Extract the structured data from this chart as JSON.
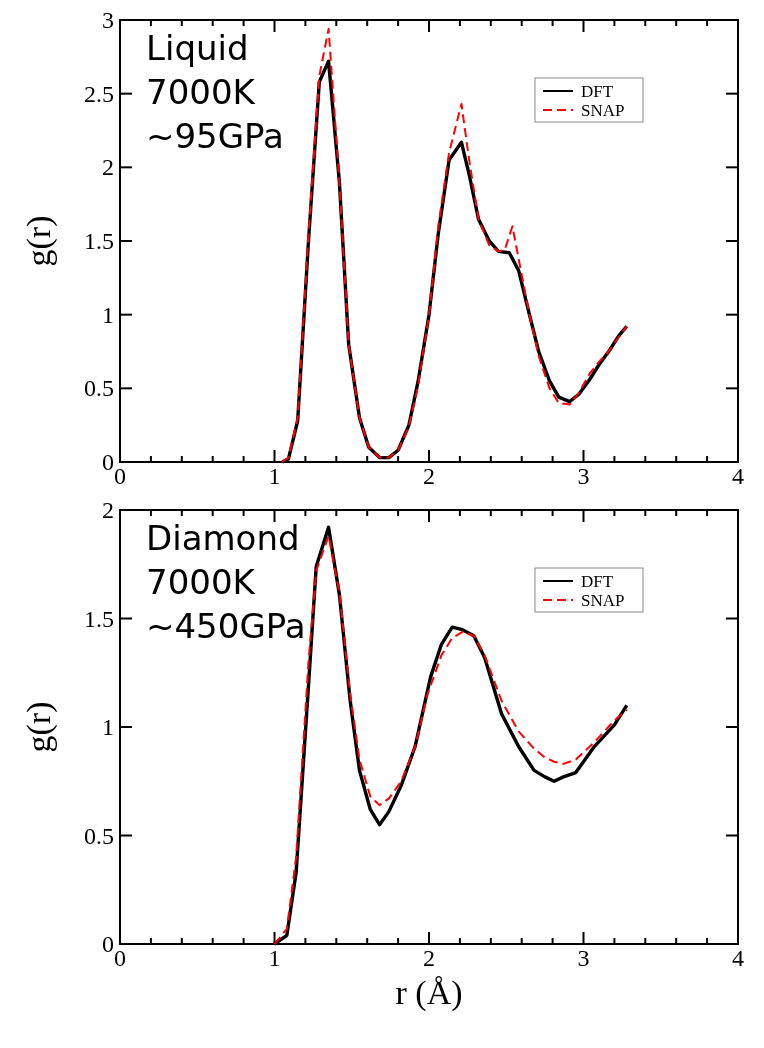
{
  "chart_data": [
    {
      "type": "line",
      "ylabel": "g(r)",
      "annotations": [
        "Liquid\n7000K\n~95GPa"
      ],
      "legend": "top right",
      "xlim": [
        0,
        4
      ],
      "ylim": [
        0,
        3
      ],
      "xticks": [
        0,
        {
          "value": 0.2,
          "label": null
        },
        {
          "value": 0.4,
          "label": null
        },
        {
          "value": 0.6,
          "label": null
        },
        {
          "value": 0.8,
          "label": null
        },
        1,
        {
          "value": 1.2,
          "label": null
        },
        {
          "value": 1.4,
          "label": null
        },
        {
          "value": 1.6,
          "label": null
        },
        {
          "value": 1.8,
          "label": null
        },
        2,
        {
          "value": 2.2,
          "label": null
        },
        {
          "value": 2.4,
          "label": null
        },
        {
          "value": 2.6,
          "label": null
        },
        {
          "value": 2.8,
          "label": null
        },
        3,
        {
          "value": 3.2,
          "label": null
        },
        {
          "value": 3.4,
          "label": null
        },
        {
          "value": 3.6,
          "label": null
        },
        {
          "value": 3.8,
          "label": null
        },
        4
      ],
      "yticks": [
        0,
        0.5,
        1,
        1.5,
        2,
        2.5,
        3
      ],
      "series": [
        {
          "name": "DFT",
          "color": "#000000",
          "line_style": "solid",
          "x": [
            1.05,
            1.09,
            1.15,
            1.22,
            1.29,
            1.35,
            1.42,
            1.48,
            1.55,
            1.61,
            1.68,
            1.74,
            1.8,
            1.87,
            1.93,
            2.0,
            2.06,
            2.13,
            2.21,
            2.26,
            2.32,
            2.39,
            2.45,
            2.52,
            2.58,
            2.65,
            2.71,
            2.78,
            2.84,
            2.91,
            2.97,
            3.04,
            3.1,
            3.17,
            3.23,
            3.28
          ],
          "values": [
            0,
            0.02,
            0.28,
            1.5,
            2.58,
            2.72,
            1.9,
            0.8,
            0.3,
            0.1,
            0.03,
            0.03,
            0.08,
            0.25,
            0.55,
            1.0,
            1.55,
            2.05,
            2.17,
            1.95,
            1.65,
            1.5,
            1.43,
            1.42,
            1.3,
            1.0,
            0.75,
            0.55,
            0.44,
            0.41,
            0.46,
            0.56,
            0.66,
            0.76,
            0.86,
            0.92
          ]
        },
        {
          "name": "SNAP",
          "color": "#ff0000",
          "line_style": "dashed",
          "x": [
            1.05,
            1.09,
            1.15,
            1.22,
            1.29,
            1.35,
            1.42,
            1.48,
            1.55,
            1.61,
            1.68,
            1.74,
            1.8,
            1.87,
            1.93,
            2.0,
            2.06,
            2.13,
            2.21,
            2.26,
            2.32,
            2.39,
            2.45,
            2.49,
            2.54,
            2.58,
            2.65,
            2.71,
            2.78,
            2.84,
            2.91,
            2.97,
            3.04,
            3.1,
            3.17,
            3.23,
            3.28
          ],
          "values": [
            0,
            0.03,
            0.3,
            1.55,
            2.62,
            2.94,
            1.9,
            0.8,
            0.3,
            0.1,
            0.03,
            0.03,
            0.08,
            0.24,
            0.52,
            1.0,
            1.6,
            2.1,
            2.43,
            2.05,
            1.65,
            1.47,
            1.43,
            1.44,
            1.6,
            1.38,
            1.0,
            0.72,
            0.5,
            0.4,
            0.39,
            0.47,
            0.6,
            0.68,
            0.76,
            0.85,
            0.92
          ]
        }
      ]
    },
    {
      "type": "line",
      "xlabel": "r (Å)",
      "ylabel": "g(r)",
      "annotations": [
        "Diamond\n7000K\n~450GPa"
      ],
      "legend": "top right",
      "xlim": [
        0,
        4
      ],
      "ylim": [
        0,
        2
      ],
      "xticks": [
        0,
        {
          "value": 0.2,
          "label": null
        },
        {
          "value": 0.4,
          "label": null
        },
        {
          "value": 0.6,
          "label": null
        },
        {
          "value": 0.8,
          "label": null
        },
        1,
        {
          "value": 1.2,
          "label": null
        },
        {
          "value": 1.4,
          "label": null
        },
        {
          "value": 1.6,
          "label": null
        },
        {
          "value": 1.8,
          "label": null
        },
        2,
        {
          "value": 2.2,
          "label": null
        },
        {
          "value": 2.4,
          "label": null
        },
        {
          "value": 2.6,
          "label": null
        },
        {
          "value": 2.8,
          "label": null
        },
        3,
        {
          "value": 3.2,
          "label": null
        },
        {
          "value": 3.4,
          "label": null
        },
        {
          "value": 3.6,
          "label": null
        },
        {
          "value": 3.8,
          "label": null
        },
        4
      ],
      "yticks": [
        0,
        0.5,
        1,
        1.5,
        2
      ],
      "series": [
        {
          "name": "DFT",
          "color": "#000000",
          "line_style": "solid",
          "x": [
            1.0,
            1.08,
            1.14,
            1.22,
            1.27,
            1.35,
            1.42,
            1.49,
            1.55,
            1.62,
            1.68,
            1.74,
            1.82,
            1.91,
            2.01,
            2.08,
            2.15,
            2.21,
            2.29,
            2.36,
            2.47,
            2.58,
            2.68,
            2.75,
            2.81,
            2.87,
            2.95,
            3.07,
            3.2,
            3.28
          ],
          "values": [
            0,
            0.04,
            0.33,
            1.19,
            1.74,
            1.92,
            1.61,
            1.12,
            0.8,
            0.62,
            0.55,
            0.61,
            0.73,
            0.91,
            1.23,
            1.38,
            1.46,
            1.45,
            1.42,
            1.32,
            1.06,
            0.91,
            0.8,
            0.77,
            0.75,
            0.77,
            0.79,
            0.91,
            1.01,
            1.1
          ]
        },
        {
          "name": "SNAP",
          "color": "#ff0000",
          "line_style": "dashed",
          "x": [
            1.0,
            1.08,
            1.14,
            1.22,
            1.27,
            1.35,
            1.42,
            1.49,
            1.55,
            1.62,
            1.68,
            1.74,
            1.82,
            1.91,
            1.99,
            2.08,
            2.15,
            2.22,
            2.29,
            2.36,
            2.47,
            2.58,
            2.68,
            2.75,
            2.81,
            2.87,
            2.95,
            3.07,
            3.2,
            3.28
          ],
          "values": [
            0,
            0.07,
            0.4,
            1.3,
            1.72,
            1.88,
            1.62,
            1.15,
            0.85,
            0.68,
            0.64,
            0.67,
            0.75,
            0.91,
            1.15,
            1.33,
            1.41,
            1.44,
            1.42,
            1.33,
            1.12,
            0.98,
            0.9,
            0.86,
            0.84,
            0.83,
            0.85,
            0.93,
            1.03,
            1.08
          ]
        }
      ]
    }
  ]
}
